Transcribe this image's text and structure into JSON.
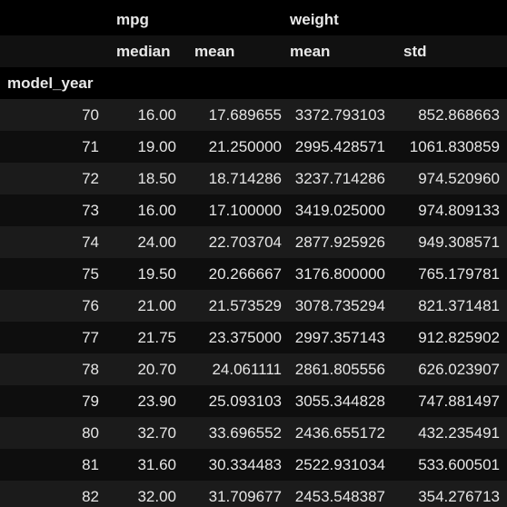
{
  "table": {
    "column_groups": [
      "mpg",
      "weight"
    ],
    "sub_columns": [
      "median",
      "mean",
      "mean",
      "std"
    ],
    "index_name": "model_year",
    "rows": [
      [
        "70",
        "16.00",
        "17.689655",
        "3372.793103",
        "852.868663"
      ],
      [
        "71",
        "19.00",
        "21.250000",
        "2995.428571",
        "1061.830859"
      ],
      [
        "72",
        "18.50",
        "18.714286",
        "3237.714286",
        "974.520960"
      ],
      [
        "73",
        "16.00",
        "17.100000",
        "3419.025000",
        "974.809133"
      ],
      [
        "74",
        "24.00",
        "22.703704",
        "2877.925926",
        "949.308571"
      ],
      [
        "75",
        "19.50",
        "20.266667",
        "3176.800000",
        "765.179781"
      ],
      [
        "76",
        "21.00",
        "21.573529",
        "3078.735294",
        "821.371481"
      ],
      [
        "77",
        "21.75",
        "23.375000",
        "2997.357143",
        "912.825902"
      ],
      [
        "78",
        "20.70",
        "24.061111",
        "2861.805556",
        "626.023907"
      ],
      [
        "79",
        "23.90",
        "25.093103",
        "3055.344828",
        "747.881497"
      ],
      [
        "80",
        "32.70",
        "33.696552",
        "2436.655172",
        "432.235491"
      ],
      [
        "81",
        "31.60",
        "30.334483",
        "2522.931034",
        "533.600501"
      ],
      [
        "82",
        "32.00",
        "31.709677",
        "2453.548387",
        "354.276713"
      ]
    ]
  },
  "colors": {
    "background": "#000000",
    "row_odd": "#1b1b1b",
    "row_even": "#0e0e0e",
    "subheader": "#111111",
    "text": "#e6e6e6"
  }
}
